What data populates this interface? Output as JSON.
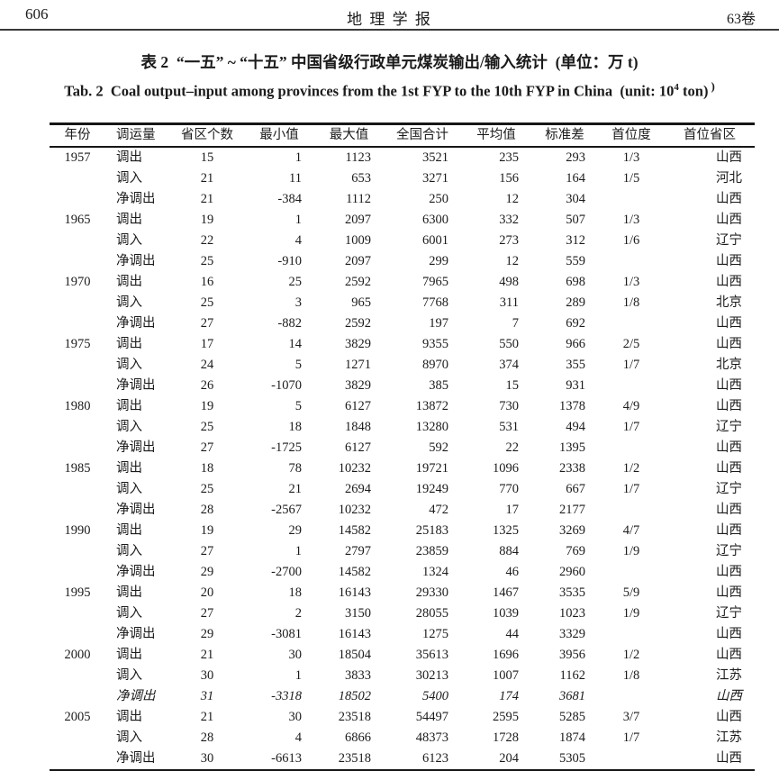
{
  "page_header": {
    "page_number": "606",
    "journal_title": "地 理 学 报",
    "volume": "63卷"
  },
  "title": {
    "zh": "表 2  “一五” ~ “十五” 中国省级行政单元煤炭输出/输入统计  (单位：万 t)",
    "en_part1": "Tab. 2  Coal output–input among provinces from the 1st FYP to the 10th FYP in China  (unit: 10",
    "en_sup": "4",
    "en_part2": " ton)",
    "footnote_mark": ")"
  },
  "table": {
    "headers": [
      "年份",
      "调运量",
      "省区个数",
      "最小值",
      "最大值",
      "全国合计",
      "平均值",
      "标准差",
      "首位度",
      "首位省区"
    ],
    "align": [
      "center",
      "left",
      "center",
      "right",
      "right",
      "right",
      "right",
      "right",
      "center",
      "right"
    ],
    "rows": [
      [
        "1957",
        "调出",
        "15",
        "1",
        "1123",
        "3521",
        "235",
        "293",
        "1/3",
        "山西"
      ],
      [
        "",
        "调入",
        "21",
        "11",
        "653",
        "3271",
        "156",
        "164",
        "1/5",
        "河北"
      ],
      [
        "",
        "净调出",
        "21",
        "-384",
        "1112",
        "250",
        "12",
        "304",
        "",
        "山西"
      ],
      [
        "1965",
        "调出",
        "19",
        "1",
        "2097",
        "6300",
        "332",
        "507",
        "1/3",
        "山西"
      ],
      [
        "",
        "调入",
        "22",
        "4",
        "1009",
        "6001",
        "273",
        "312",
        "1/6",
        "辽宁"
      ],
      [
        "",
        "净调出",
        "25",
        "-910",
        "2097",
        "299",
        "12",
        "559",
        "",
        "山西"
      ],
      [
        "1970",
        "调出",
        "16",
        "25",
        "2592",
        "7965",
        "498",
        "698",
        "1/3",
        "山西"
      ],
      [
        "",
        "调入",
        "25",
        "3",
        "965",
        "7768",
        "311",
        "289",
        "1/8",
        "北京"
      ],
      [
        "",
        "净调出",
        "27",
        "-882",
        "2592",
        "197",
        "7",
        "692",
        "",
        "山西"
      ],
      [
        "1975",
        "调出",
        "17",
        "14",
        "3829",
        "9355",
        "550",
        "966",
        "2/5",
        "山西"
      ],
      [
        "",
        "调入",
        "24",
        "5",
        "1271",
        "8970",
        "374",
        "355",
        "1/7",
        "北京"
      ],
      [
        "",
        "净调出",
        "26",
        "-1070",
        "3829",
        "385",
        "15",
        "931",
        "",
        "山西"
      ],
      [
        "1980",
        "调出",
        "19",
        "5",
        "6127",
        "13872",
        "730",
        "1378",
        "4/9",
        "山西"
      ],
      [
        "",
        "调入",
        "25",
        "18",
        "1848",
        "13280",
        "531",
        "494",
        "1/7",
        "辽宁"
      ],
      [
        "",
        "净调出",
        "27",
        "-1725",
        "6127",
        "592",
        "22",
        "1395",
        "",
        "山西"
      ],
      [
        "1985",
        "调出",
        "18",
        "78",
        "10232",
        "19721",
        "1096",
        "2338",
        "1/2",
        "山西"
      ],
      [
        "",
        "调入",
        "25",
        "21",
        "2694",
        "19249",
        "770",
        "667",
        "1/7",
        "辽宁"
      ],
      [
        "",
        "净调出",
        "28",
        "-2567",
        "10232",
        "472",
        "17",
        "2177",
        "",
        "山西"
      ],
      [
        "1990",
        "调出",
        "19",
        "29",
        "14582",
        "25183",
        "1325",
        "3269",
        "4/7",
        "山西"
      ],
      [
        "",
        "调入",
        "27",
        "1",
        "2797",
        "23859",
        "884",
        "769",
        "1/9",
        "辽宁"
      ],
      [
        "",
        "净调出",
        "29",
        "-2700",
        "14582",
        "1324",
        "46",
        "2960",
        "",
        "山西"
      ],
      [
        "1995",
        "调出",
        "20",
        "18",
        "16143",
        "29330",
        "1467",
        "3535",
        "5/9",
        "山西"
      ],
      [
        "",
        "调入",
        "27",
        "2",
        "3150",
        "28055",
        "1039",
        "1023",
        "1/9",
        "辽宁"
      ],
      [
        "",
        "净调出",
        "29",
        "-3081",
        "16143",
        "1275",
        "44",
        "3329",
        "",
        "山西"
      ],
      [
        "2000",
        "调出",
        "21",
        "30",
        "18504",
        "35613",
        "1696",
        "3956",
        "1/2",
        "山西"
      ],
      [
        "",
        "调入",
        "30",
        "1",
        "3833",
        "30213",
        "1007",
        "1162",
        "1/8",
        "江苏"
      ],
      [
        "",
        "净调出",
        "31",
        "-3318",
        "18502",
        "5400",
        "174",
        "3681",
        "",
        "山西"
      ],
      [
        "2005",
        "调出",
        "21",
        "30",
        "23518",
        "54497",
        "2595",
        "5285",
        "3/7",
        "山西"
      ],
      [
        "",
        "调入",
        "28",
        "4",
        "6866",
        "48373",
        "1728",
        "1874",
        "1/7",
        "江苏"
      ],
      [
        "",
        "净调出",
        "30",
        "-6613",
        "23518",
        "6123",
        "204",
        "5305",
        "",
        "山西"
      ]
    ],
    "italic_rows": [
      26
    ]
  }
}
